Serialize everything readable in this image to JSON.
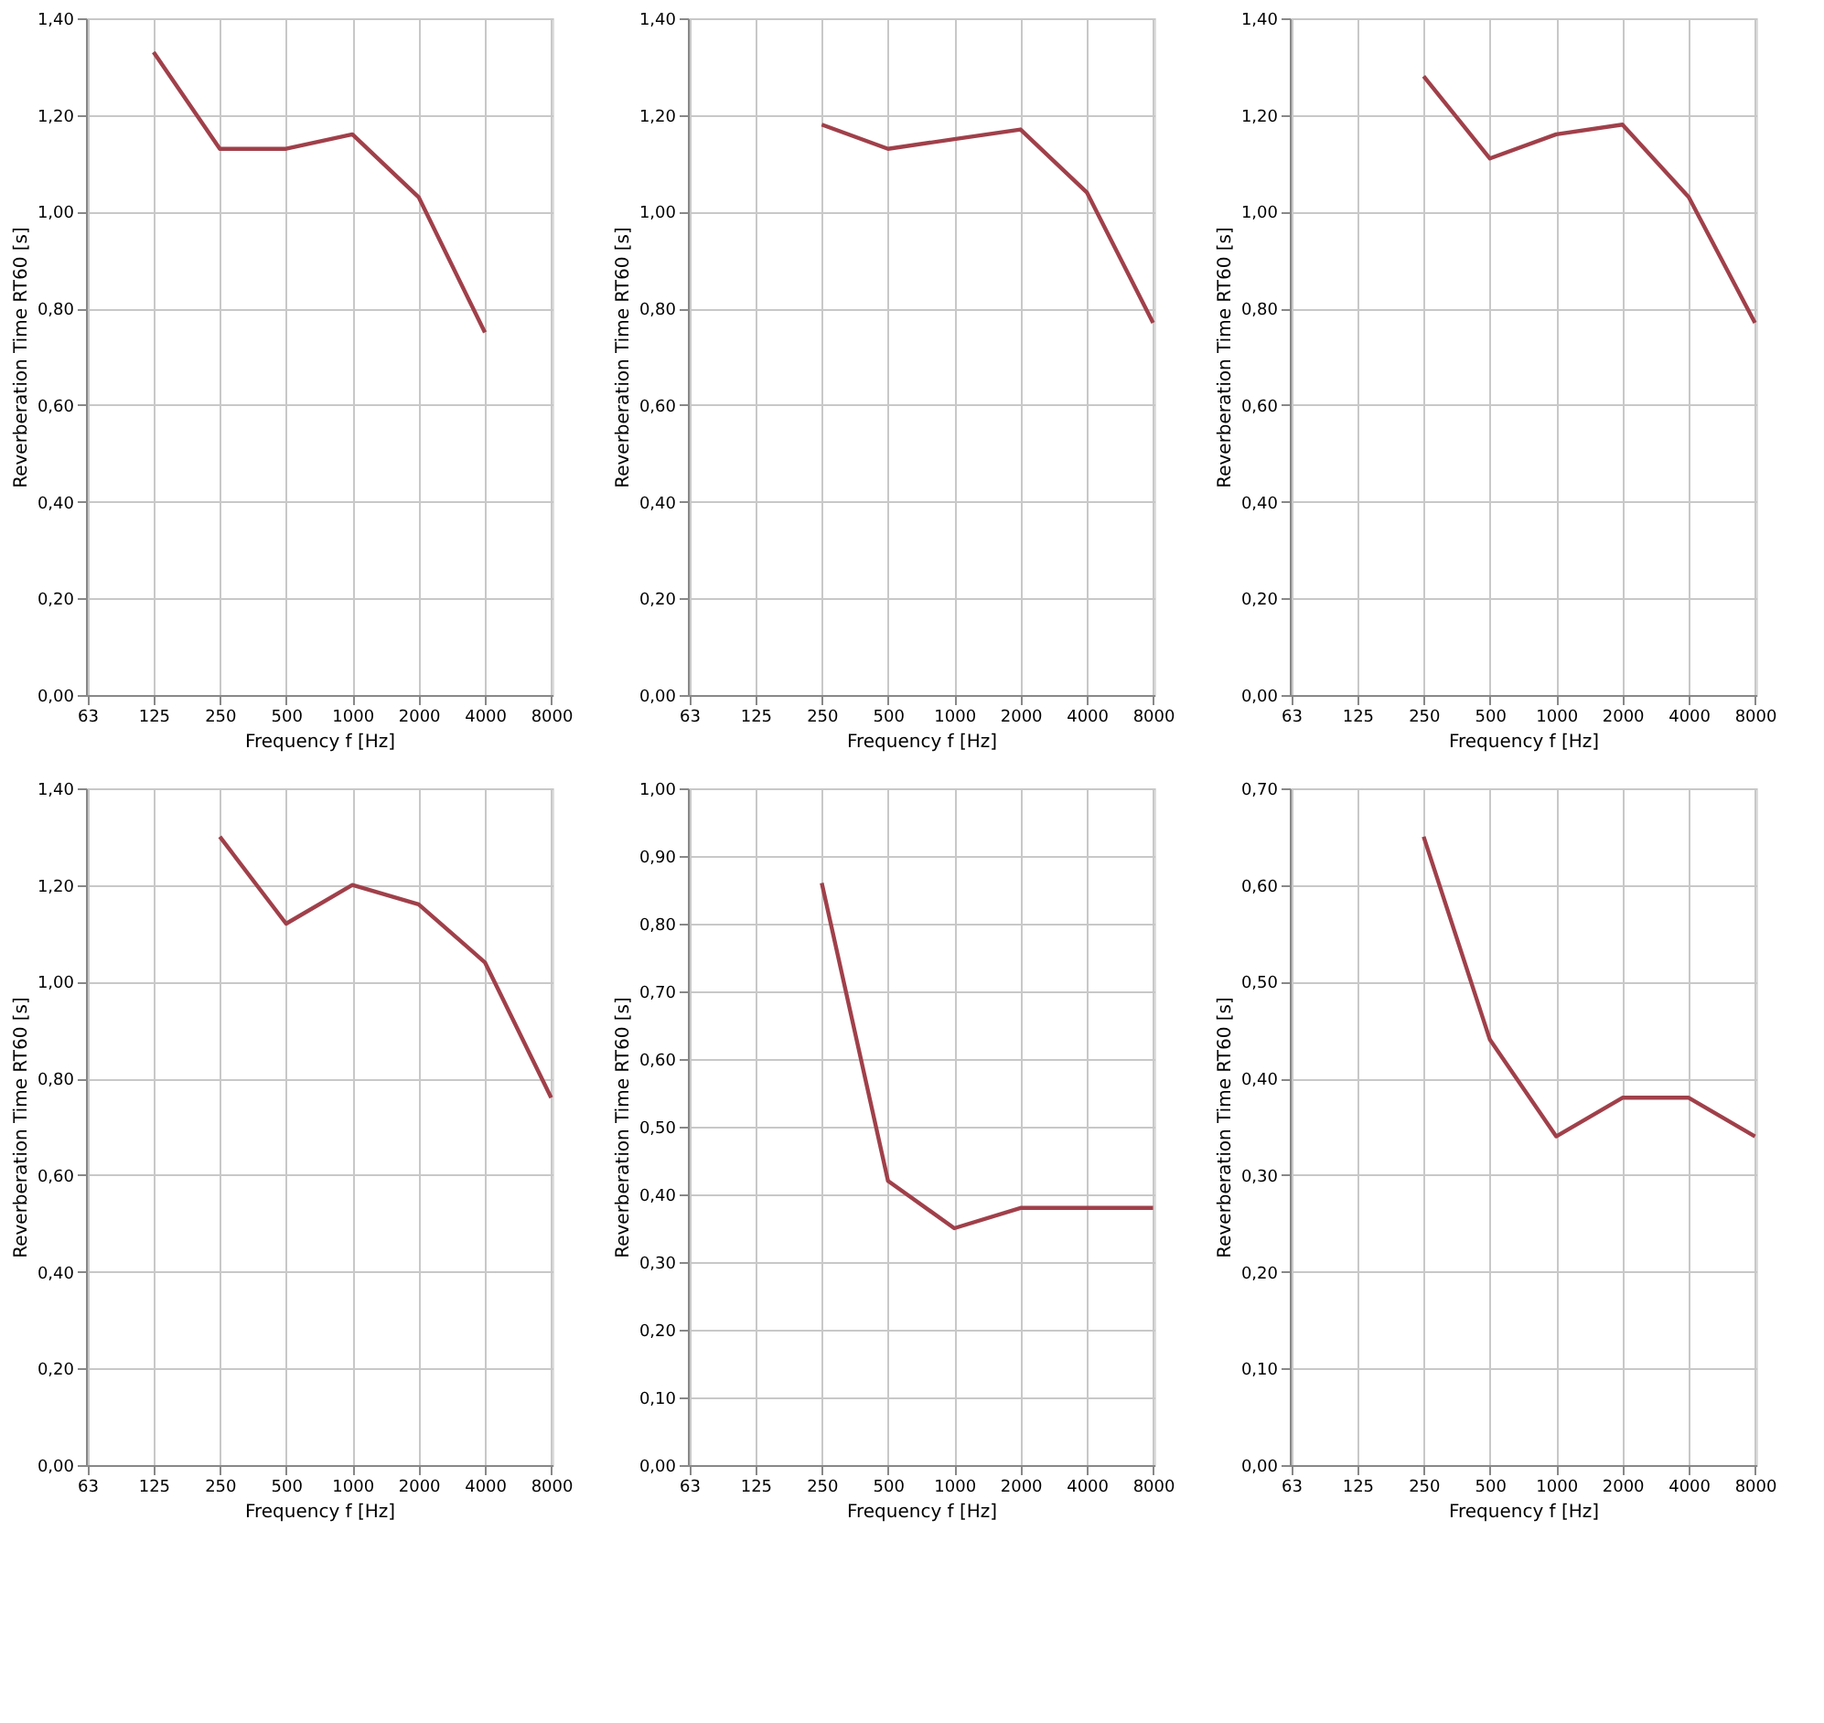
{
  "chart_data": [
    {
      "type": "line",
      "xlabel": "Frequency f [Hz]",
      "ylabel": "Reverberation Time RT60 [s]",
      "categories": [
        "63",
        "125",
        "250",
        "500",
        "1000",
        "2000",
        "4000",
        "8000"
      ],
      "series": [
        {
          "color": "#a0404a",
          "values": [
            null,
            1.33,
            1.13,
            1.13,
            1.16,
            1.03,
            0.75,
            null
          ]
        }
      ],
      "ylim": [
        0,
        1.4
      ],
      "yticks": [
        {
          "value": 0,
          "label": "0,00"
        },
        {
          "value": 0.2,
          "label": "0,20"
        },
        {
          "value": 0.4,
          "label": "0,40"
        },
        {
          "value": 0.6,
          "label": "0,60"
        },
        {
          "value": 0.8,
          "label": "0,80"
        },
        {
          "value": 1.0,
          "label": "1,00"
        },
        {
          "value": 1.2,
          "label": "1,20"
        },
        {
          "value": 1.4,
          "label": "1,40"
        }
      ],
      "grid": true
    },
    {
      "type": "line",
      "xlabel": "Frequency f [Hz]",
      "ylabel": "Reverberation Time RT60 [s]",
      "categories": [
        "63",
        "125",
        "250",
        "500",
        "1000",
        "2000",
        "4000",
        "8000"
      ],
      "series": [
        {
          "color": "#a0404a",
          "values": [
            null,
            null,
            1.18,
            1.13,
            1.15,
            1.17,
            1.04,
            0.77
          ]
        }
      ],
      "ylim": [
        0,
        1.4
      ],
      "yticks": [
        {
          "value": 0,
          "label": "0,00"
        },
        {
          "value": 0.2,
          "label": "0,20"
        },
        {
          "value": 0.4,
          "label": "0,40"
        },
        {
          "value": 0.6,
          "label": "0,60"
        },
        {
          "value": 0.8,
          "label": "0,80"
        },
        {
          "value": 1.0,
          "label": "1,00"
        },
        {
          "value": 1.2,
          "label": "1,20"
        },
        {
          "value": 1.4,
          "label": "1,40"
        }
      ],
      "grid": true
    },
    {
      "type": "line",
      "xlabel": "Frequency f [Hz]",
      "ylabel": "Reverberation Time RT60 [s]",
      "categories": [
        "63",
        "125",
        "250",
        "500",
        "1000",
        "2000",
        "4000",
        "8000"
      ],
      "series": [
        {
          "color": "#a0404a",
          "values": [
            null,
            null,
            1.28,
            1.11,
            1.16,
            1.18,
            1.03,
            0.77
          ]
        }
      ],
      "ylim": [
        0,
        1.4
      ],
      "yticks": [
        {
          "value": 0,
          "label": "0,00"
        },
        {
          "value": 0.2,
          "label": "0,20"
        },
        {
          "value": 0.4,
          "label": "0,40"
        },
        {
          "value": 0.6,
          "label": "0,60"
        },
        {
          "value": 0.8,
          "label": "0,80"
        },
        {
          "value": 1.0,
          "label": "1,00"
        },
        {
          "value": 1.2,
          "label": "1,20"
        },
        {
          "value": 1.4,
          "label": "1,40"
        }
      ],
      "grid": true
    },
    {
      "type": "line",
      "xlabel": "Frequency f [Hz]",
      "ylabel": "Reverberation Time RT60 [s]",
      "categories": [
        "63",
        "125",
        "250",
        "500",
        "1000",
        "2000",
        "4000",
        "8000"
      ],
      "series": [
        {
          "color": "#a0404a",
          "values": [
            null,
            null,
            1.3,
            1.12,
            1.2,
            1.16,
            1.04,
            0.76
          ]
        }
      ],
      "ylim": [
        0,
        1.4
      ],
      "yticks": [
        {
          "value": 0,
          "label": "0,00"
        },
        {
          "value": 0.2,
          "label": "0,20"
        },
        {
          "value": 0.4,
          "label": "0,40"
        },
        {
          "value": 0.6,
          "label": "0,60"
        },
        {
          "value": 0.8,
          "label": "0,80"
        },
        {
          "value": 1.0,
          "label": "1,00"
        },
        {
          "value": 1.2,
          "label": "1,20"
        },
        {
          "value": 1.4,
          "label": "1,40"
        }
      ],
      "grid": true
    },
    {
      "type": "line",
      "xlabel": "Frequency f [Hz]",
      "ylabel": "Reverberation Time RT60 [s]",
      "categories": [
        "63",
        "125",
        "250",
        "500",
        "1000",
        "2000",
        "4000",
        "8000"
      ],
      "series": [
        {
          "color": "#a0404a",
          "values": [
            null,
            null,
            0.86,
            0.42,
            0.35,
            0.38,
            0.38,
            0.38
          ]
        }
      ],
      "ylim": [
        0,
        1.0
      ],
      "yticks": [
        {
          "value": 0,
          "label": "0,00"
        },
        {
          "value": 0.1,
          "label": "0,10"
        },
        {
          "value": 0.2,
          "label": "0,20"
        },
        {
          "value": 0.3,
          "label": "0,30"
        },
        {
          "value": 0.4,
          "label": "0,40"
        },
        {
          "value": 0.5,
          "label": "0,50"
        },
        {
          "value": 0.6,
          "label": "0,60"
        },
        {
          "value": 0.7,
          "label": "0,70"
        },
        {
          "value": 0.8,
          "label": "0,80"
        },
        {
          "value": 0.9,
          "label": "0,90"
        },
        {
          "value": 1.0,
          "label": "1,00"
        }
      ],
      "grid": true
    },
    {
      "type": "line",
      "xlabel": "Frequency f [Hz]",
      "ylabel": "Reverberation Time RT60 [s]",
      "categories": [
        "63",
        "125",
        "250",
        "500",
        "1000",
        "2000",
        "4000",
        "8000"
      ],
      "series": [
        {
          "color": "#a0404a",
          "values": [
            null,
            null,
            0.65,
            0.44,
            0.34,
            0.38,
            0.38,
            0.34
          ]
        }
      ],
      "ylim": [
        0,
        0.7
      ],
      "yticks": [
        {
          "value": 0,
          "label": "0,00"
        },
        {
          "value": 0.1,
          "label": "0,10"
        },
        {
          "value": 0.2,
          "label": "0,20"
        },
        {
          "value": 0.3,
          "label": "0,30"
        },
        {
          "value": 0.4,
          "label": "0,40"
        },
        {
          "value": 0.5,
          "label": "0,50"
        },
        {
          "value": 0.6,
          "label": "0,60"
        },
        {
          "value": 0.7,
          "label": "0,70"
        }
      ],
      "grid": true
    }
  ]
}
